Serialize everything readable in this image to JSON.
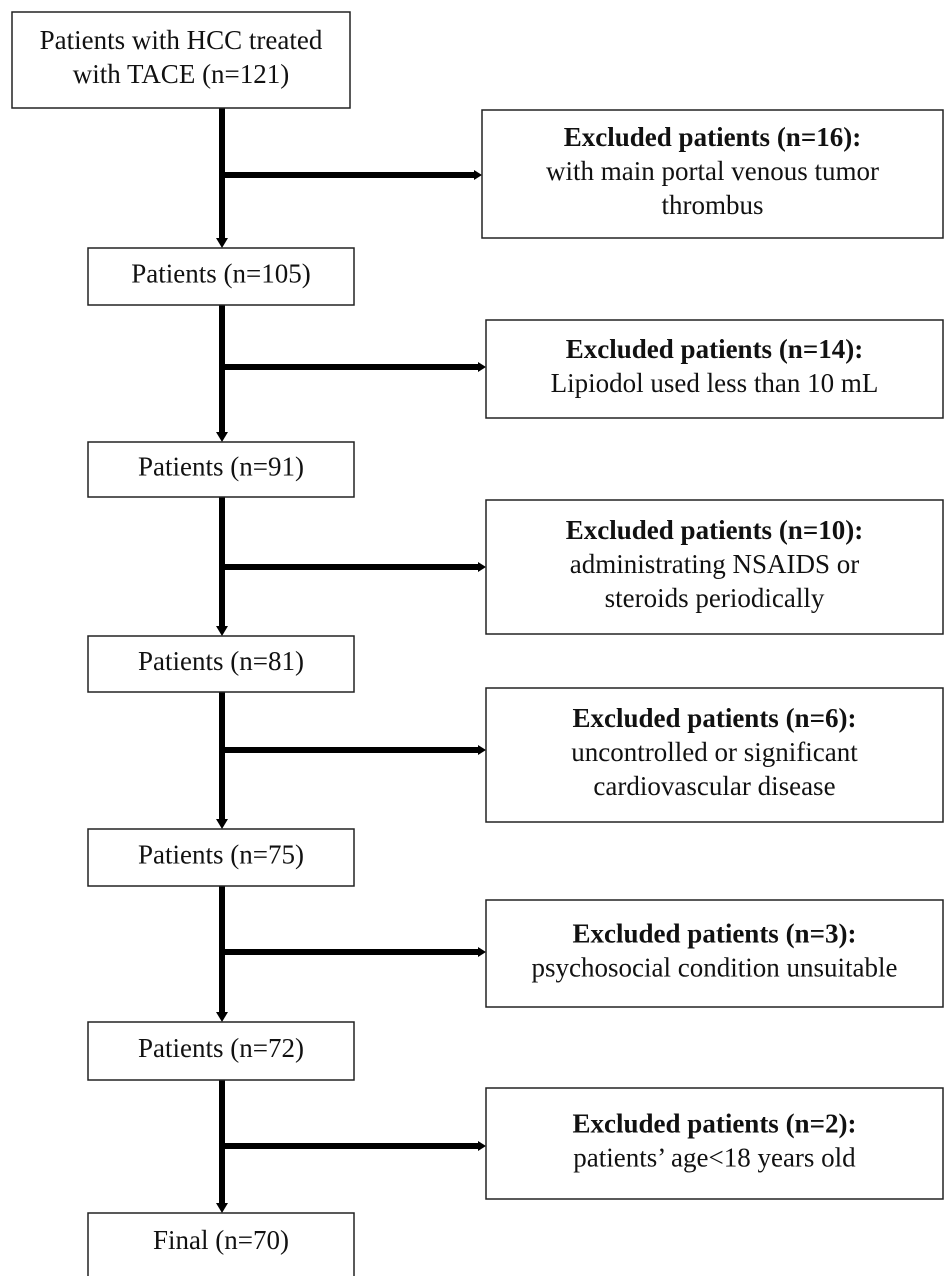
{
  "nodes": [
    {
      "lines": [
        "Patients with HCC treated",
        "with TACE (n=121)"
      ]
    },
    {
      "lines": [
        "Patients (n=105)"
      ]
    },
    {
      "lines": [
        "Patients (n=91)"
      ]
    },
    {
      "lines": [
        "Patients (n=81)"
      ]
    },
    {
      "lines": [
        "Patients (n=75)"
      ]
    },
    {
      "lines": [
        "Patients (n=72)"
      ]
    },
    {
      "lines": [
        "Final (n=70)"
      ]
    }
  ],
  "exclusions": [
    {
      "title": "Excluded patients (n=16):",
      "lines": [
        "with main portal venous tumor",
        "thrombus"
      ]
    },
    {
      "title": "Excluded patients (n=14):",
      "lines": [
        "Lipiodol used less than 10 mL"
      ]
    },
    {
      "title": "Excluded patients (n=10):",
      "lines": [
        "administrating NSAIDS or",
        "steroids periodically"
      ]
    },
    {
      "title": "Excluded patients (n=6):",
      "lines": [
        "uncontrolled or significant",
        "cardiovascular disease"
      ]
    },
    {
      "title": "Excluded patients (n=3):",
      "lines": [
        "psychosocial condition unsuitable"
      ]
    },
    {
      "title": "Excluded patients (n=2):",
      "lines": [
        "patients’ age<18 years old"
      ]
    }
  ]
}
